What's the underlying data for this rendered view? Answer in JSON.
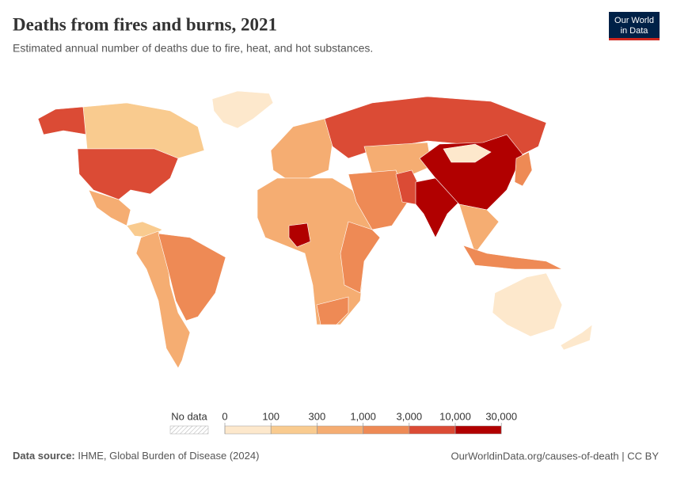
{
  "header": {
    "title": "Deaths from fires and burns, 2021",
    "subtitle": "Estimated annual number of deaths due to fire, heat, and hot substances.",
    "logo": [
      "Our World",
      "in Data"
    ]
  },
  "chart_data": {
    "type": "choropleth",
    "legend": {
      "no_data": "No data",
      "ticks": [
        0,
        100,
        300,
        {
          "value": 1000,
          "label": "1,000"
        },
        {
          "value": 3000,
          "label": "3,000"
        },
        {
          "value": 10000,
          "label": "10,000"
        },
        {
          "value": 30000,
          "label": "30,000"
        }
      ],
      "colors": [
        "#fde8cc",
        "#f9cb8f",
        "#f5ad72",
        "#ee8a55",
        "#db4b35",
        "#b10000"
      ]
    }
  },
  "footer": {
    "source_label": "Data source:",
    "source": "IHME, Global Burden of Disease (2024)",
    "url": "OurWorldinData.org/causes-of-death | CC BY"
  }
}
